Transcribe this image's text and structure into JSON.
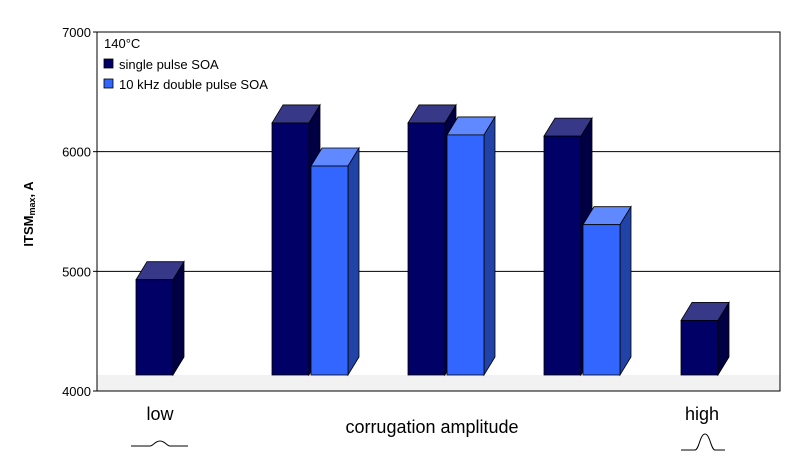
{
  "chart_data": {
    "type": "bar",
    "title": "",
    "annotation": "140°C",
    "ylabel": "ITSMmax, A",
    "xlabel": "corrugation amplitude",
    "end_labels": [
      "low",
      "high"
    ],
    "ylim": [
      4000,
      7000
    ],
    "yticks": [
      4000,
      5000,
      6000,
      7000
    ],
    "grid": true,
    "legend_position": "top-left",
    "style": "3d",
    "groups": 5,
    "series": [
      {
        "name": "single pulse SOA",
        "color": "#000066",
        "values": [
          4930,
          6240,
          6240,
          6130,
          4590
        ]
      },
      {
        "name": "10 kHz double pulse SOA",
        "color": "#3366ff",
        "values": [
          null,
          5880,
          6140,
          5390,
          null
        ]
      }
    ]
  }
}
